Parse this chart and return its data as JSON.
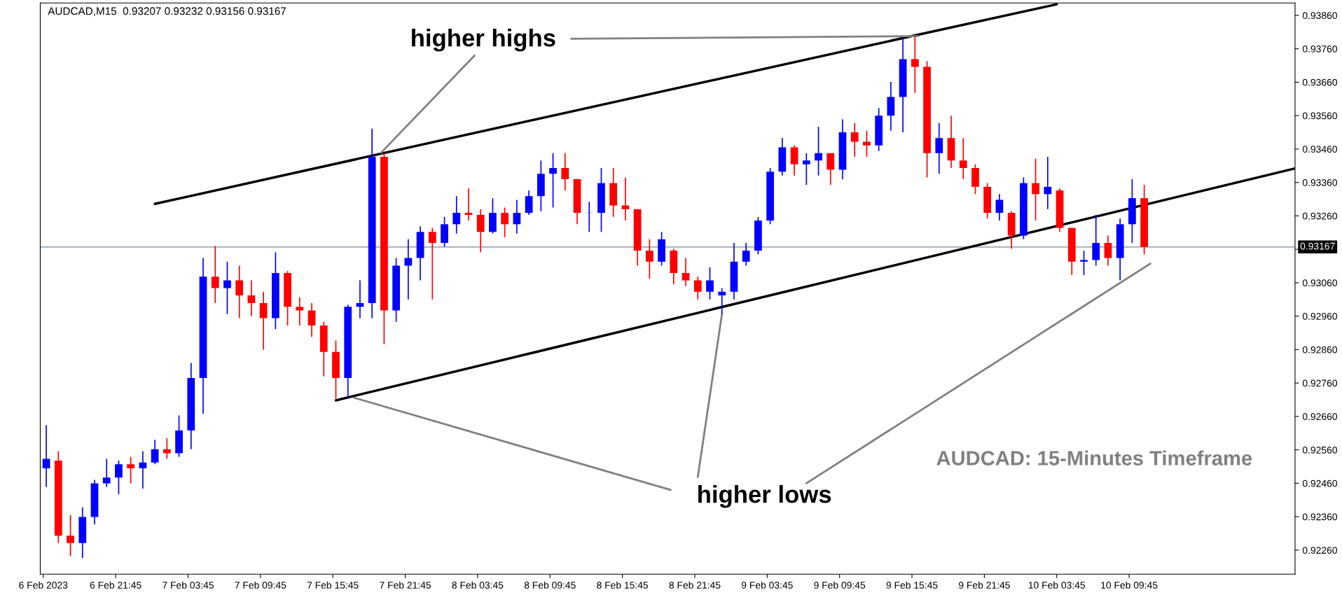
{
  "chart_data": {
    "type": "candlestick",
    "title": "AUDCAD,M15  0.93207 0.93232 0.93156 0.93167",
    "x": [
      "2023-02-06T16:00",
      "2023-02-06T17:00",
      "2023-02-06T18:00",
      "2023-02-06T19:00",
      "2023-02-06T20:00",
      "2023-02-06T21:00",
      "2023-02-06T22:00",
      "2023-02-06T23:00",
      "2023-02-07T00:00",
      "2023-02-07T01:00",
      "2023-02-07T02:00",
      "2023-02-07T03:00",
      "2023-02-07T04:00",
      "2023-02-07T05:00",
      "2023-02-07T06:00",
      "2023-02-07T07:00",
      "2023-02-07T08:00",
      "2023-02-07T09:00",
      "2023-02-07T10:00",
      "2023-02-07T11:00",
      "2023-02-07T12:00",
      "2023-02-07T13:00",
      "2023-02-07T14:00",
      "2023-02-07T15:00",
      "2023-02-07T16:00",
      "2023-02-07T17:00",
      "2023-02-07T18:00",
      "2023-02-07T19:00",
      "2023-02-07T20:00",
      "2023-02-07T21:00",
      "2023-02-07T22:00",
      "2023-02-07T23:00",
      "2023-02-08T00:00",
      "2023-02-08T01:00",
      "2023-02-08T02:00",
      "2023-02-08T03:00",
      "2023-02-08T04:00",
      "2023-02-08T05:00",
      "2023-02-08T06:00",
      "2023-02-08T07:00",
      "2023-02-08T08:00",
      "2023-02-08T09:00",
      "2023-02-08T10:00",
      "2023-02-08T11:00",
      "2023-02-08T12:00",
      "2023-02-08T13:00",
      "2023-02-08T14:00",
      "2023-02-08T15:00",
      "2023-02-08T16:00",
      "2023-02-08T17:00",
      "2023-02-08T18:00",
      "2023-02-08T19:00",
      "2023-02-08T20:00",
      "2023-02-08T21:00",
      "2023-02-08T22:00",
      "2023-02-08T23:00",
      "2023-02-09T00:00",
      "2023-02-09T01:00",
      "2023-02-09T02:00",
      "2023-02-09T03:00",
      "2023-02-09T04:00",
      "2023-02-09T05:00",
      "2023-02-09T06:00",
      "2023-02-09T07:00",
      "2023-02-09T08:00",
      "2023-02-09T09:00",
      "2023-02-09T10:00",
      "2023-02-09T11:00",
      "2023-02-09T12:00",
      "2023-02-09T13:00",
      "2023-02-09T14:00",
      "2023-02-09T15:00",
      "2023-02-09T16:00",
      "2023-02-09T17:00",
      "2023-02-09T18:00",
      "2023-02-09T19:00",
      "2023-02-09T20:00",
      "2023-02-09T21:00",
      "2023-02-09T22:00",
      "2023-02-09T23:00",
      "2023-02-10T00:00",
      "2023-02-10T01:00",
      "2023-02-10T02:00",
      "2023-02-10T03:00",
      "2023-02-10T04:00",
      "2023-02-10T05:00",
      "2023-02-10T06:00",
      "2023-02-10T07:00",
      "2023-02-10T08:00",
      "2023-02-10T09:00",
      "2023-02-10T10:00",
      "2023-02-10T11:00"
    ],
    "ohlc": [
      [
        0.92505,
        0.92634,
        0.92449,
        0.92533
      ],
      [
        0.92528,
        0.92556,
        0.92281,
        0.92303
      ],
      [
        0.92303,
        0.92365,
        0.92242,
        0.92281
      ],
      [
        0.92281,
        0.92388,
        0.92236,
        0.92359
      ],
      [
        0.92359,
        0.9247,
        0.92337,
        0.9246
      ],
      [
        0.9246,
        0.92533,
        0.92449,
        0.92477
      ],
      [
        0.92477,
        0.92528,
        0.92427,
        0.92517
      ],
      [
        0.92517,
        0.92539,
        0.9246,
        0.92505
      ],
      [
        0.92505,
        0.92556,
        0.92444,
        0.92522
      ],
      [
        0.92522,
        0.9259,
        0.92517,
        0.92562
      ],
      [
        0.92562,
        0.92595,
        0.92533,
        0.9255
      ],
      [
        0.9255,
        0.92663,
        0.92539,
        0.92618
      ],
      [
        0.92618,
        0.9282,
        0.92562,
        0.92775
      ],
      [
        0.92775,
        0.93134,
        0.92668,
        0.93078
      ],
      [
        0.93078,
        0.9317,
        0.92999,
        0.93044
      ],
      [
        0.93044,
        0.93123,
        0.92966,
        0.93067
      ],
      [
        0.93067,
        0.93111,
        0.92954,
        0.93022
      ],
      [
        0.93022,
        0.93067,
        0.9296,
        0.92999
      ],
      [
        0.92999,
        0.93033,
        0.92859,
        0.92954
      ],
      [
        0.92954,
        0.93151,
        0.92921,
        0.93089
      ],
      [
        0.93089,
        0.93095,
        0.92932,
        0.92988
      ],
      [
        0.92988,
        0.93016,
        0.92932,
        0.92977
      ],
      [
        0.92977,
        0.92999,
        0.92898,
        0.92932
      ],
      [
        0.92932,
        0.92943,
        0.9278,
        0.92853
      ],
      [
        0.92853,
        0.92887,
        0.92713,
        0.92775
      ],
      [
        0.92775,
        0.92994,
        0.92713,
        0.92988
      ],
      [
        0.92988,
        0.93067,
        0.92954,
        0.92999
      ],
      [
        0.92999,
        0.93521,
        0.92954,
        0.93437
      ],
      [
        0.93437,
        0.93448,
        0.92876,
        0.92977
      ],
      [
        0.92977,
        0.93134,
        0.92943,
        0.93111
      ],
      [
        0.93111,
        0.9319,
        0.9301,
        0.93134
      ],
      [
        0.93134,
        0.93229,
        0.93067,
        0.93212
      ],
      [
        0.93212,
        0.93224,
        0.9301,
        0.93179
      ],
      [
        0.93179,
        0.93257,
        0.93168,
        0.93235
      ],
      [
        0.93235,
        0.93319,
        0.93207,
        0.93269
      ],
      [
        0.93269,
        0.93342,
        0.93246,
        0.93263
      ],
      [
        0.93263,
        0.9328,
        0.93151,
        0.93212
      ],
      [
        0.93212,
        0.93313,
        0.93207,
        0.93269
      ],
      [
        0.93269,
        0.93285,
        0.93196,
        0.93235
      ],
      [
        0.93235,
        0.93308,
        0.93207,
        0.93269
      ],
      [
        0.93269,
        0.93336,
        0.93263,
        0.93319
      ],
      [
        0.93319,
        0.93426,
        0.93274,
        0.93386
      ],
      [
        0.93386,
        0.93448,
        0.93285,
        0.93403
      ],
      [
        0.93403,
        0.93448,
        0.93336,
        0.9337
      ],
      [
        0.9337,
        0.9337,
        0.93235,
        0.93269
      ],
      [
        0.93269,
        0.93302,
        0.93212,
        0.93269
      ],
      [
        0.93269,
        0.93403,
        0.93212,
        0.93358
      ],
      [
        0.93358,
        0.93403,
        0.93257,
        0.93291
      ],
      [
        0.93291,
        0.93375,
        0.93246,
        0.9328
      ],
      [
        0.9328,
        0.9328,
        0.93111,
        0.93156
      ],
      [
        0.93156,
        0.9319,
        0.93072,
        0.93123
      ],
      [
        0.93123,
        0.93212,
        0.93111,
        0.9319
      ],
      [
        0.93156,
        0.93162,
        0.93055,
        0.93089
      ],
      [
        0.93089,
        0.93134,
        0.9305,
        0.93067
      ],
      [
        0.93067,
        0.93078,
        0.9301,
        0.93033
      ],
      [
        0.93033,
        0.93106,
        0.9301,
        0.93067
      ],
      [
        0.93022,
        0.93044,
        0.92966,
        0.93033
      ],
      [
        0.93033,
        0.93179,
        0.9301,
        0.93123
      ],
      [
        0.93123,
        0.93179,
        0.93111,
        0.93156
      ],
      [
        0.93156,
        0.93257,
        0.93145,
        0.93246
      ],
      [
        0.93246,
        0.93403,
        0.93235,
        0.93392
      ],
      [
        0.93392,
        0.93493,
        0.93381,
        0.93465
      ],
      [
        0.93465,
        0.93471,
        0.93381,
        0.93414
      ],
      [
        0.93414,
        0.93448,
        0.93353,
        0.93426
      ],
      [
        0.93426,
        0.93527,
        0.93381,
        0.93448
      ],
      [
        0.93448,
        0.93448,
        0.93353,
        0.93398
      ],
      [
        0.93398,
        0.93549,
        0.9337,
        0.9351
      ],
      [
        0.9351,
        0.93538,
        0.93437,
        0.93482
      ],
      [
        0.93482,
        0.93515,
        0.93437,
        0.93471
      ],
      [
        0.93471,
        0.93583,
        0.93454,
        0.9356
      ],
      [
        0.9356,
        0.93661,
        0.93515,
        0.93616
      ],
      [
        0.93616,
        0.9379,
        0.9351,
        0.93729
      ],
      [
        0.93729,
        0.93798,
        0.93628,
        0.93706
      ],
      [
        0.93706,
        0.93723,
        0.93375,
        0.93448
      ],
      [
        0.93448,
        0.93538,
        0.93386,
        0.93493
      ],
      [
        0.93493,
        0.9356,
        0.93403,
        0.93426
      ],
      [
        0.93426,
        0.93493,
        0.9337,
        0.93403
      ],
      [
        0.93403,
        0.93414,
        0.93325,
        0.93347
      ],
      [
        0.93347,
        0.93358,
        0.93252,
        0.93269
      ],
      [
        0.93269,
        0.93325,
        0.93246,
        0.93308
      ],
      [
        0.93269,
        0.93274,
        0.93162,
        0.93201
      ],
      [
        0.93201,
        0.93375,
        0.9319,
        0.93358
      ],
      [
        0.93358,
        0.93431,
        0.93246,
        0.93325
      ],
      [
        0.93325,
        0.93437,
        0.9328,
        0.93347
      ],
      [
        0.93336,
        0.93342,
        0.93212,
        0.93224
      ],
      [
        0.93224,
        0.93224,
        0.93083,
        0.93123
      ],
      [
        0.93123,
        0.93156,
        0.93083,
        0.93128
      ],
      [
        0.93128,
        0.93263,
        0.93111,
        0.93179
      ],
      [
        0.93179,
        0.93201,
        0.93111,
        0.93134
      ],
      [
        0.93134,
        0.93252,
        0.93067,
        0.93235
      ],
      [
        0.93235,
        0.9337,
        0.93179,
        0.93313
      ],
      [
        0.93313,
        0.93353,
        0.93145,
        0.93167
      ]
    ],
    "colors": [
      "#0000ff",
      "#ff0000",
      "#ff0000",
      "#0000ff",
      "#0000ff",
      "#0000ff",
      "#0000ff",
      "#ff0000",
      "#0000ff",
      "#0000ff",
      "#ff0000",
      "#0000ff",
      "#0000ff",
      "#0000ff",
      "#ff0000",
      "#0000ff",
      "#ff0000",
      "#ff0000",
      "#ff0000",
      "#0000ff",
      "#ff0000",
      "#ff0000",
      "#ff0000",
      "#ff0000",
      "#ff0000",
      "#0000ff",
      "#0000ff",
      "#0000ff",
      "#ff0000",
      "#0000ff",
      "#0000ff",
      "#0000ff",
      "#ff0000",
      "#0000ff",
      "#0000ff",
      "#ff0000",
      "#ff0000",
      "#0000ff",
      "#ff0000",
      "#0000ff",
      "#0000ff",
      "#0000ff",
      "#0000ff",
      "#ff0000",
      "#ff0000",
      "#0000ff",
      "#0000ff",
      "#ff0000",
      "#ff0000",
      "#ff0000",
      "#ff0000",
      "#0000ff",
      "#ff0000",
      "#ff0000",
      "#ff0000",
      "#0000ff",
      "#0000ff",
      "#0000ff",
      "#0000ff",
      "#0000ff",
      "#0000ff",
      "#0000ff",
      "#ff0000",
      "#0000ff",
      "#0000ff",
      "#ff0000",
      "#0000ff",
      "#ff0000",
      "#ff0000",
      "#0000ff",
      "#0000ff",
      "#0000ff",
      "#ff0000",
      "#ff0000",
      "#0000ff",
      "#ff0000",
      "#ff0000",
      "#ff0000",
      "#ff0000",
      "#0000ff",
      "#ff0000",
      "#0000ff",
      "#ff0000",
      "#0000ff",
      "#ff0000",
      "#ff0000",
      "#0000ff",
      "#0000ff",
      "#ff0000",
      "#0000ff",
      "#0000ff",
      "#ff0000"
    ],
    "series": [
      {
        "type": "line",
        "color": "#000000",
        "x": [
          "2023-02-07T01:00",
          "2023-02-09T15:45",
          "2023-02-10T03:45"
        ],
        "values": [
          0.93296,
          0.93798,
          0.93893
        ]
      },
      {
        "type": "line",
        "color": "#000000",
        "x": [
          "2023-02-07T16:00",
          "2023-02-10T23:30"
        ],
        "values": [
          0.92708,
          0.93402
        ]
      },
      {
        "type": "line",
        "color": "#808080",
        "x": [
          "2023-02-08T03:30",
          "2023-02-07T19:45"
        ],
        "values": [
          0.9374,
          0.93449
        ]
      },
      {
        "type": "line",
        "color": "#808080",
        "x": [
          "2023-02-08T11:30",
          "2023-02-09T16:15"
        ],
        "values": [
          0.9379,
          0.93798
        ]
      },
      {
        "type": "line",
        "color": "#808080",
        "x": [
          "2023-02-07T17:30",
          "2023-02-08T19:45"
        ],
        "values": [
          0.92716,
          0.9244
        ]
      },
      {
        "type": "line",
        "color": "#808080",
        "x": [
          "2023-02-08T22:00",
          "2023-02-09T00:00"
        ],
        "values": [
          0.92479,
          0.92966
        ]
      },
      {
        "type": "line",
        "color": "#808080",
        "x": [
          "2023-02-09T07:00",
          "2023-02-10T11:30"
        ],
        "values": [
          0.9246,
          0.93117
        ]
      }
    ],
    "annotations": [
      "higher highs",
      "higher lows",
      "AUDCAD: 15-Minutes Timeframe"
    ],
    "ref_lines": [
      {
        "axis": "y",
        "value": 0.93167,
        "label": "0.93167",
        "color": "#778899"
      }
    ],
    "xlim": [
      "2023-02-06T15:30",
      "2023-02-10T23:30"
    ],
    "xticks": [
      {
        "value": "2023-02-06T15:45",
        "label": "6 Feb 2023"
      },
      {
        "value": "2023-02-06T21:45",
        "label": "6 Feb 21:45"
      },
      {
        "value": "2023-02-07T03:45",
        "label": "7 Feb 03:45"
      },
      {
        "value": "2023-02-07T09:45",
        "label": "7 Feb 09:45"
      },
      {
        "value": "2023-02-07T15:45",
        "label": "7 Feb 15:45"
      },
      {
        "value": "2023-02-07T21:45",
        "label": "7 Feb 21:45"
      },
      {
        "value": "2023-02-08T03:45",
        "label": "8 Feb 03:45"
      },
      {
        "value": "2023-02-08T09:45",
        "label": "8 Feb 09:45"
      },
      {
        "value": "2023-02-08T15:45",
        "label": "8 Feb 15:45"
      },
      {
        "value": "2023-02-08T21:45",
        "label": "8 Feb 21:45"
      },
      {
        "value": "2023-02-09T03:45",
        "label": "9 Feb 03:45"
      },
      {
        "value": "2023-02-09T09:45",
        "label": "9 Feb 09:45"
      },
      {
        "value": "2023-02-09T15:45",
        "label": "9 Feb 15:45"
      },
      {
        "value": "2023-02-09T21:45",
        "label": "9 Feb 21:45"
      },
      {
        "value": "2023-02-10T03:45",
        "label": "10 Feb 03:45"
      },
      {
        "value": "2023-02-10T09:45",
        "label": "10 Feb 09:45"
      }
    ],
    "ylim": [
      0.92188,
      0.93897
    ],
    "yticks": [
      {
        "value": 0.9226,
        "label": "0.92260"
      },
      {
        "value": 0.9236,
        "label": "0.92360"
      },
      {
        "value": 0.9246,
        "label": "0.92460"
      },
      {
        "value": 0.9256,
        "label": "0.92560"
      },
      {
        "value": 0.9266,
        "label": "0.92660"
      },
      {
        "value": 0.9276,
        "label": "0.92760"
      },
      {
        "value": 0.9286,
        "label": "0.92860"
      },
      {
        "value": 0.9296,
        "label": "0.92960"
      },
      {
        "value": 0.9306,
        "label": "0.93060"
      },
      {
        "value": 0.9316,
        "label": null
      },
      {
        "value": 0.9326,
        "label": "0.93260"
      },
      {
        "value": 0.9336,
        "label": "0.93360"
      },
      {
        "value": 0.9346,
        "label": "0.93460"
      },
      {
        "value": 0.9356,
        "label": "0.93560"
      },
      {
        "value": 0.9366,
        "label": "0.93660"
      },
      {
        "value": 0.9376,
        "label": "0.93760"
      },
      {
        "value": 0.9386,
        "label": "0.93860"
      }
    ],
    "grid": false,
    "legend": false
  }
}
